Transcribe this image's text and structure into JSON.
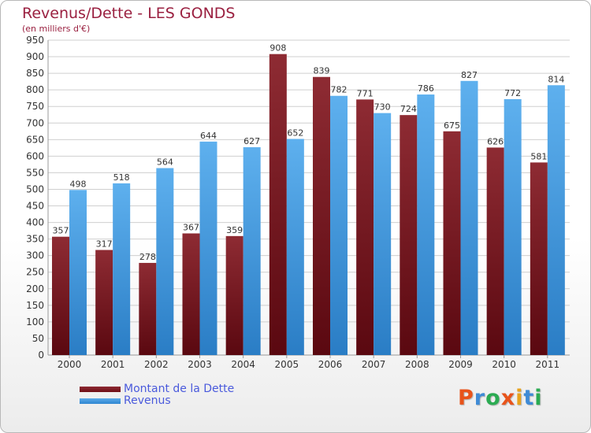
{
  "page": {
    "title": "Revenus/Dette - LES GONDS",
    "subtitle": "(en milliers d'€)",
    "logo_text": "Proxiti"
  },
  "colors": {
    "dette": "#6e0d16",
    "dette_light": "#8b2a33",
    "revenus": "#2f86d0",
    "revenus_light": "#5aaaea",
    "title": "#9a2040",
    "legend_text": "#4a5adc",
    "grid": "#c8c8c8",
    "logo": [
      "#e8541b",
      "#3f8bd6",
      "#2bab52",
      "#e8541b",
      "#e8a21b",
      "#3f8bd6",
      "#2bab52"
    ]
  },
  "chart_data": {
    "type": "bar",
    "title": "Revenus/Dette - LES GONDS",
    "ylabel": "(en milliers d'€)",
    "categories": [
      "2000",
      "2001",
      "2002",
      "2003",
      "2004",
      "2005",
      "2006",
      "2007",
      "2008",
      "2009",
      "2010",
      "2011"
    ],
    "series": [
      {
        "name": "Montant de la Dette",
        "values": [
          357,
          317,
          278,
          367,
          359,
          908,
          839,
          771,
          724,
          675,
          626,
          581
        ]
      },
      {
        "name": "Revenus",
        "values": [
          498,
          518,
          564,
          644,
          627,
          652,
          782,
          730,
          786,
          827,
          772,
          814
        ]
      }
    ],
    "ylim": [
      0,
      950
    ],
    "yticks": [
      0,
      50,
      100,
      150,
      200,
      250,
      300,
      350,
      400,
      450,
      500,
      550,
      600,
      650,
      700,
      750,
      800,
      850,
      900,
      950
    ],
    "grid": true,
    "legend_position": "bottom-left"
  }
}
